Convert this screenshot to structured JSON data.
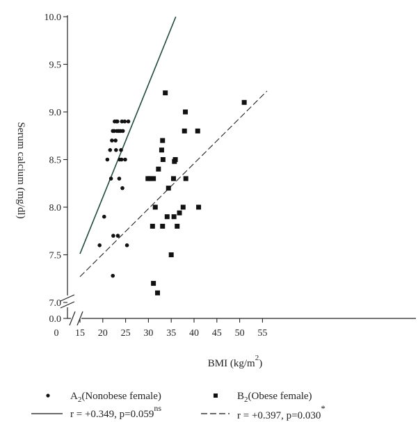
{
  "chart_data": {
    "type": "scatter",
    "xlabel": "BMI  (kg/m",
    "xlabel_sup": "2",
    "xlabel_close": ")",
    "ylabel": "Serum  calcium  (mg/dl)",
    "xlim": [
      0,
      55
    ],
    "ylim_display": [
      7.0,
      10.0
    ],
    "y_break": true,
    "x_break": true,
    "x_ticks": [
      {
        "value": 0,
        "label": "0"
      },
      {
        "value": 15,
        "label": "15"
      },
      {
        "value": 20,
        "label": "20"
      },
      {
        "value": 25,
        "label": "25"
      },
      {
        "value": 30,
        "label": "30"
      },
      {
        "value": 35,
        "label": "35"
      },
      {
        "value": 40,
        "label": "40"
      },
      {
        "value": 45,
        "label": "45"
      },
      {
        "value": 50,
        "label": "50"
      },
      {
        "value": 55,
        "label": "55"
      }
    ],
    "y_ticks": [
      {
        "value": 0.0,
        "label": "0.0"
      },
      {
        "value": 7.0,
        "label": "7.0"
      },
      {
        "value": 7.5,
        "label": "7.5"
      },
      {
        "value": 8.0,
        "label": "8.0"
      },
      {
        "value": 8.5,
        "label": "8.5"
      },
      {
        "value": 9.0,
        "label": "9.0"
      },
      {
        "value": 9.5,
        "label": "9.5"
      },
      {
        "value": 10.0,
        "label": "10.0"
      }
    ],
    "series": [
      {
        "name": "A2(Nonobese female)",
        "marker": "circle",
        "color": "#111111",
        "points": [
          [
            19.3,
            7.6
          ],
          [
            20.3,
            7.9
          ],
          [
            21.0,
            8.5
          ],
          [
            21.6,
            8.6
          ],
          [
            21.8,
            8.3
          ],
          [
            22.0,
            8.7
          ],
          [
            22.2,
            8.8
          ],
          [
            22.3,
            7.7
          ],
          [
            22.2,
            7.28
          ],
          [
            22.5,
            8.8
          ],
          [
            22.6,
            8.9
          ],
          [
            22.8,
            8.7
          ],
          [
            22.9,
            8.6
          ],
          [
            23.0,
            8.9
          ],
          [
            23.1,
            8.8
          ],
          [
            23.2,
            8.9
          ],
          [
            23.3,
            7.7
          ],
          [
            23.5,
            8.8
          ],
          [
            23.6,
            8.3
          ],
          [
            23.7,
            8.5
          ],
          [
            23.9,
            8.8
          ],
          [
            24.0,
            8.6
          ],
          [
            24.1,
            8.5
          ],
          [
            24.2,
            8.9
          ],
          [
            24.3,
            8.2
          ],
          [
            24.4,
            8.8
          ],
          [
            24.8,
            8.9
          ],
          [
            24.9,
            8.5
          ],
          [
            25.3,
            7.6
          ],
          [
            25.6,
            8.9
          ]
        ]
      },
      {
        "name": "B2(Obese female)",
        "marker": "square",
        "color": "#111111",
        "points": [
          [
            29.9,
            8.3
          ],
          [
            30.3,
            8.3
          ],
          [
            30.9,
            7.8
          ],
          [
            31.1,
            7.2
          ],
          [
            31.1,
            8.3
          ],
          [
            31.5,
            8.0
          ],
          [
            32.0,
            7.1
          ],
          [
            32.2,
            8.4
          ],
          [
            32.9,
            8.6
          ],
          [
            33.1,
            8.7
          ],
          [
            33.2,
            8.5
          ],
          [
            33.1,
            7.8
          ],
          [
            33.7,
            9.2
          ],
          [
            34.1,
            7.9
          ],
          [
            34.4,
            8.2
          ],
          [
            35.0,
            7.5
          ],
          [
            35.5,
            8.3
          ],
          [
            35.6,
            7.9
          ],
          [
            35.7,
            8.48
          ],
          [
            35.9,
            8.5
          ],
          [
            36.3,
            7.8
          ],
          [
            36.8,
            7.94
          ],
          [
            37.6,
            8.0
          ],
          [
            37.9,
            8.8
          ],
          [
            38.1,
            9.0
          ],
          [
            38.2,
            8.3
          ],
          [
            40.8,
            8.8
          ],
          [
            41.0,
            8.0
          ],
          [
            51.0,
            9.1
          ]
        ]
      }
    ],
    "fit_lines": [
      {
        "series": "A2(Nonobese female)",
        "style": "solid",
        "color": "#1f4a38",
        "x": [
          15,
          36
        ],
        "y": [
          7.51,
          10.0
        ]
      },
      {
        "series": "B2(Obese female)",
        "style": "dashed",
        "color": "#222222",
        "x": [
          15,
          56
        ],
        "y": [
          7.27,
          9.22
        ]
      }
    ],
    "legend": {
      "placement": "bottom",
      "items": [
        {
          "symbol": "circle",
          "label_main": "A",
          "label_sub": "2",
          "label_rest": "(Nonobese female)"
        },
        {
          "symbol": "square",
          "label_main": "B",
          "label_sub": "2",
          "label_rest": "(Obese female)"
        },
        {
          "symbol": "solid-line",
          "label": "r = +0.349, p=0.059",
          "label_sup": "ns"
        },
        {
          "symbol": "dashed-line",
          "label": "r = +0.397, p=0.030",
          "label_sup": "*"
        }
      ]
    }
  }
}
